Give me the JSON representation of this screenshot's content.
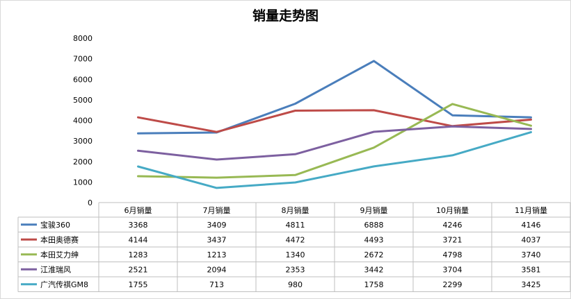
{
  "chart_data": {
    "type": "line",
    "title": "销量走势图",
    "categories": [
      "6月销量",
      "7月销量",
      "8月销量",
      "9月销量",
      "10月销量",
      "11月销量"
    ],
    "ylim": [
      0,
      8000
    ],
    "yticks": [
      0,
      1000,
      2000,
      3000,
      4000,
      5000,
      6000,
      7000,
      8000
    ],
    "grid": false,
    "legend": "data-table",
    "series": [
      {
        "name": "宝骏360",
        "color": "#4a7ebb",
        "values": [
          3368,
          3409,
          4811,
          6888,
          4246,
          4146
        ]
      },
      {
        "name": "本田奥德赛",
        "color": "#be4b48",
        "values": [
          4144,
          3437,
          4472,
          4493,
          3721,
          4037
        ]
      },
      {
        "name": "本田艾力绅",
        "color": "#98b954",
        "values": [
          1283,
          1213,
          1340,
          2672,
          4798,
          3740
        ]
      },
      {
        "name": "江淮瑞风",
        "color": "#7d60a0",
        "values": [
          2521,
          2094,
          2353,
          3442,
          3704,
          3581
        ]
      },
      {
        "name": "广汽传祺GM8",
        "color": "#46aac5",
        "values": [
          1755,
          713,
          980,
          1758,
          2299,
          3425
        ]
      }
    ]
  }
}
